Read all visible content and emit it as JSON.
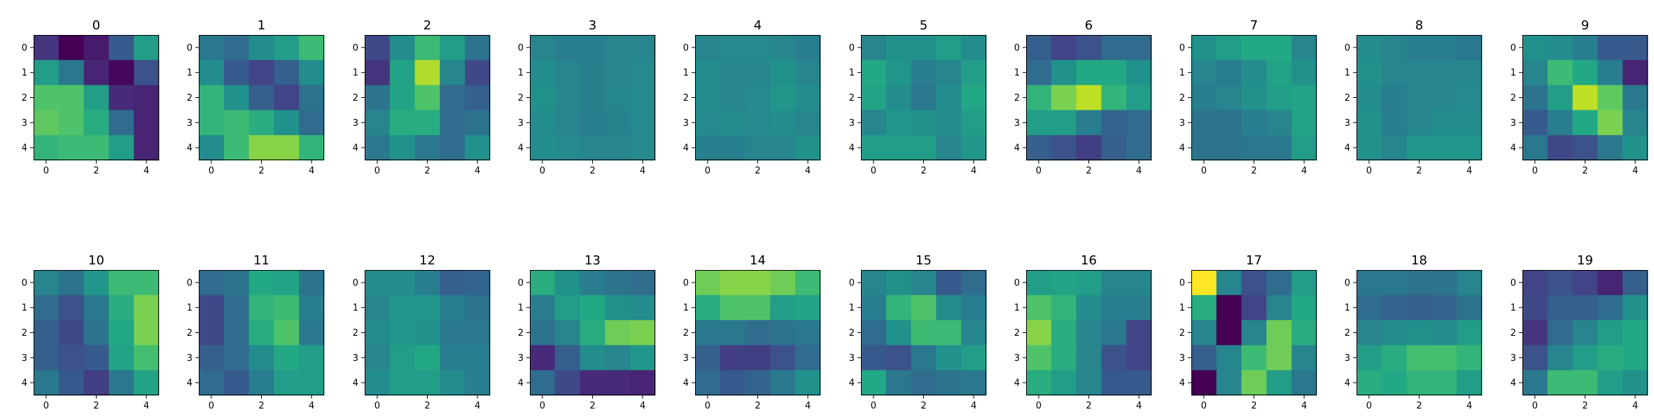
{
  "chart_data": {
    "type": "heatmap",
    "colormap": "viridis",
    "value_range": [
      0,
      1
    ],
    "grid": false,
    "layout": {
      "rows": 2,
      "cols": 10
    },
    "x_ticks": [
      "0",
      "2",
      "4"
    ],
    "y_ticks": [
      "0",
      "1",
      "2",
      "3",
      "4"
    ],
    "panels": [
      {
        "title": "0",
        "z": [
          [
            0.15,
            0.0,
            0.07,
            0.28,
            0.55
          ],
          [
            0.55,
            0.4,
            0.1,
            0.02,
            0.25
          ],
          [
            0.72,
            0.72,
            0.55,
            0.12,
            0.1
          ],
          [
            0.75,
            0.72,
            0.62,
            0.35,
            0.1
          ],
          [
            0.65,
            0.68,
            0.68,
            0.55,
            0.1
          ]
        ]
      },
      {
        "title": "1",
        "z": [
          [
            0.4,
            0.35,
            0.48,
            0.55,
            0.68
          ],
          [
            0.48,
            0.28,
            0.2,
            0.3,
            0.48
          ],
          [
            0.65,
            0.5,
            0.3,
            0.2,
            0.38
          ],
          [
            0.65,
            0.68,
            0.62,
            0.5,
            0.35
          ],
          [
            0.48,
            0.68,
            0.82,
            0.82,
            0.65
          ]
        ]
      },
      {
        "title": "2",
        "z": [
          [
            0.22,
            0.48,
            0.68,
            0.55,
            0.38
          ],
          [
            0.15,
            0.58,
            0.88,
            0.45,
            0.22
          ],
          [
            0.38,
            0.58,
            0.72,
            0.35,
            0.3
          ],
          [
            0.45,
            0.62,
            0.62,
            0.35,
            0.38
          ],
          [
            0.4,
            0.5,
            0.4,
            0.35,
            0.5
          ]
        ]
      },
      {
        "title": "3",
        "z": [
          [
            0.45,
            0.42,
            0.42,
            0.45,
            0.45
          ],
          [
            0.48,
            0.45,
            0.43,
            0.45,
            0.47
          ],
          [
            0.5,
            0.45,
            0.43,
            0.46,
            0.47
          ],
          [
            0.48,
            0.45,
            0.42,
            0.44,
            0.47
          ],
          [
            0.48,
            0.47,
            0.45,
            0.45,
            0.47
          ]
        ]
      },
      {
        "title": "4",
        "z": [
          [
            0.45,
            0.47,
            0.47,
            0.45,
            0.42
          ],
          [
            0.48,
            0.45,
            0.45,
            0.5,
            0.45
          ],
          [
            0.48,
            0.45,
            0.47,
            0.52,
            0.48
          ],
          [
            0.47,
            0.48,
            0.47,
            0.48,
            0.45
          ],
          [
            0.43,
            0.43,
            0.45,
            0.45,
            0.5
          ]
        ]
      },
      {
        "title": "5",
        "z": [
          [
            0.45,
            0.5,
            0.5,
            0.55,
            0.48
          ],
          [
            0.6,
            0.52,
            0.42,
            0.45,
            0.55
          ],
          [
            0.58,
            0.48,
            0.4,
            0.48,
            0.6
          ],
          [
            0.45,
            0.52,
            0.5,
            0.48,
            0.55
          ],
          [
            0.55,
            0.55,
            0.55,
            0.45,
            0.52
          ]
        ]
      },
      {
        "title": "6",
        "z": [
          [
            0.3,
            0.2,
            0.25,
            0.35,
            0.35
          ],
          [
            0.35,
            0.5,
            0.6,
            0.6,
            0.5
          ],
          [
            0.65,
            0.8,
            0.9,
            0.65,
            0.55
          ],
          [
            0.55,
            0.55,
            0.42,
            0.32,
            0.35
          ],
          [
            0.3,
            0.25,
            0.18,
            0.3,
            0.35
          ]
        ]
      },
      {
        "title": "7",
        "z": [
          [
            0.5,
            0.55,
            0.6,
            0.6,
            0.45
          ],
          [
            0.45,
            0.42,
            0.48,
            0.58,
            0.5
          ],
          [
            0.42,
            0.45,
            0.5,
            0.55,
            0.58
          ],
          [
            0.38,
            0.38,
            0.42,
            0.45,
            0.58
          ],
          [
            0.38,
            0.38,
            0.4,
            0.4,
            0.55
          ]
        ]
      },
      {
        "title": "8",
        "z": [
          [
            0.48,
            0.45,
            0.42,
            0.42,
            0.4
          ],
          [
            0.5,
            0.45,
            0.45,
            0.45,
            0.45
          ],
          [
            0.48,
            0.42,
            0.45,
            0.45,
            0.47
          ],
          [
            0.5,
            0.42,
            0.45,
            0.48,
            0.48
          ],
          [
            0.5,
            0.45,
            0.52,
            0.52,
            0.52
          ]
        ]
      },
      {
        "title": "9",
        "z": [
          [
            0.5,
            0.48,
            0.42,
            0.28,
            0.28
          ],
          [
            0.45,
            0.68,
            0.6,
            0.42,
            0.1
          ],
          [
            0.38,
            0.55,
            0.9,
            0.75,
            0.4
          ],
          [
            0.28,
            0.42,
            0.6,
            0.8,
            0.45
          ],
          [
            0.4,
            0.22,
            0.25,
            0.4,
            0.5
          ]
        ]
      },
      {
        "title": "10",
        "z": [
          [
            0.45,
            0.38,
            0.52,
            0.68,
            0.68
          ],
          [
            0.35,
            0.25,
            0.4,
            0.62,
            0.8
          ],
          [
            0.3,
            0.22,
            0.38,
            0.6,
            0.8
          ],
          [
            0.3,
            0.25,
            0.28,
            0.58,
            0.7
          ],
          [
            0.4,
            0.28,
            0.18,
            0.4,
            0.58
          ]
        ]
      },
      {
        "title": "11",
        "z": [
          [
            0.35,
            0.38,
            0.6,
            0.58,
            0.38
          ],
          [
            0.22,
            0.35,
            0.65,
            0.68,
            0.42
          ],
          [
            0.22,
            0.35,
            0.62,
            0.72,
            0.4
          ],
          [
            0.3,
            0.35,
            0.48,
            0.6,
            0.55
          ],
          [
            0.35,
            0.28,
            0.42,
            0.55,
            0.55
          ]
        ]
      },
      {
        "title": "12",
        "z": [
          [
            0.48,
            0.48,
            0.42,
            0.3,
            0.32
          ],
          [
            0.45,
            0.52,
            0.52,
            0.42,
            0.38
          ],
          [
            0.48,
            0.52,
            0.5,
            0.4,
            0.4
          ],
          [
            0.45,
            0.55,
            0.6,
            0.42,
            0.42
          ],
          [
            0.48,
            0.55,
            0.55,
            0.48,
            0.42
          ]
        ]
      },
      {
        "title": "13",
        "z": [
          [
            0.62,
            0.5,
            0.42,
            0.38,
            0.35
          ],
          [
            0.42,
            0.55,
            0.6,
            0.5,
            0.48
          ],
          [
            0.38,
            0.45,
            0.62,
            0.78,
            0.8
          ],
          [
            0.12,
            0.3,
            0.48,
            0.45,
            0.52
          ],
          [
            0.35,
            0.22,
            0.12,
            0.12,
            0.1
          ]
        ]
      },
      {
        "title": "14",
        "z": [
          [
            0.78,
            0.82,
            0.82,
            0.78,
            0.68
          ],
          [
            0.62,
            0.72,
            0.72,
            0.55,
            0.58
          ],
          [
            0.4,
            0.4,
            0.35,
            0.38,
            0.4
          ],
          [
            0.3,
            0.18,
            0.18,
            0.25,
            0.35
          ],
          [
            0.35,
            0.28,
            0.32,
            0.4,
            0.5
          ]
        ]
      },
      {
        "title": "15",
        "z": [
          [
            0.45,
            0.5,
            0.45,
            0.28,
            0.35
          ],
          [
            0.42,
            0.65,
            0.72,
            0.48,
            0.42
          ],
          [
            0.35,
            0.5,
            0.68,
            0.68,
            0.45
          ],
          [
            0.28,
            0.25,
            0.4,
            0.5,
            0.55
          ],
          [
            0.6,
            0.4,
            0.35,
            0.38,
            0.4
          ]
        ]
      },
      {
        "title": "16",
        "z": [
          [
            0.55,
            0.58,
            0.55,
            0.45,
            0.45
          ],
          [
            0.72,
            0.65,
            0.48,
            0.42,
            0.42
          ],
          [
            0.82,
            0.62,
            0.45,
            0.4,
            0.2
          ],
          [
            0.72,
            0.62,
            0.45,
            0.25,
            0.2
          ],
          [
            0.62,
            0.55,
            0.45,
            0.28,
            0.28
          ]
        ]
      },
      {
        "title": "17",
        "z": [
          [
            1.0,
            0.45,
            0.25,
            0.35,
            0.55
          ],
          [
            0.62,
            0.0,
            0.2,
            0.45,
            0.6
          ],
          [
            0.45,
            0.0,
            0.45,
            0.78,
            0.62
          ],
          [
            0.3,
            0.45,
            0.68,
            0.78,
            0.45
          ],
          [
            0.0,
            0.45,
            0.78,
            0.55,
            0.4
          ]
        ]
      },
      {
        "title": "18",
        "z": [
          [
            0.4,
            0.4,
            0.38,
            0.38,
            0.45
          ],
          [
            0.35,
            0.32,
            0.3,
            0.32,
            0.38
          ],
          [
            0.45,
            0.48,
            0.5,
            0.48,
            0.55
          ],
          [
            0.55,
            0.62,
            0.7,
            0.7,
            0.65
          ],
          [
            0.62,
            0.6,
            0.65,
            0.65,
            0.55
          ]
        ]
      },
      {
        "title": "19",
        "z": [
          [
            0.2,
            0.25,
            0.2,
            0.1,
            0.3
          ],
          [
            0.22,
            0.3,
            0.3,
            0.35,
            0.5
          ],
          [
            0.15,
            0.35,
            0.45,
            0.55,
            0.6
          ],
          [
            0.25,
            0.45,
            0.55,
            0.62,
            0.6
          ],
          [
            0.4,
            0.68,
            0.68,
            0.55,
            0.5
          ]
        ]
      }
    ]
  }
}
